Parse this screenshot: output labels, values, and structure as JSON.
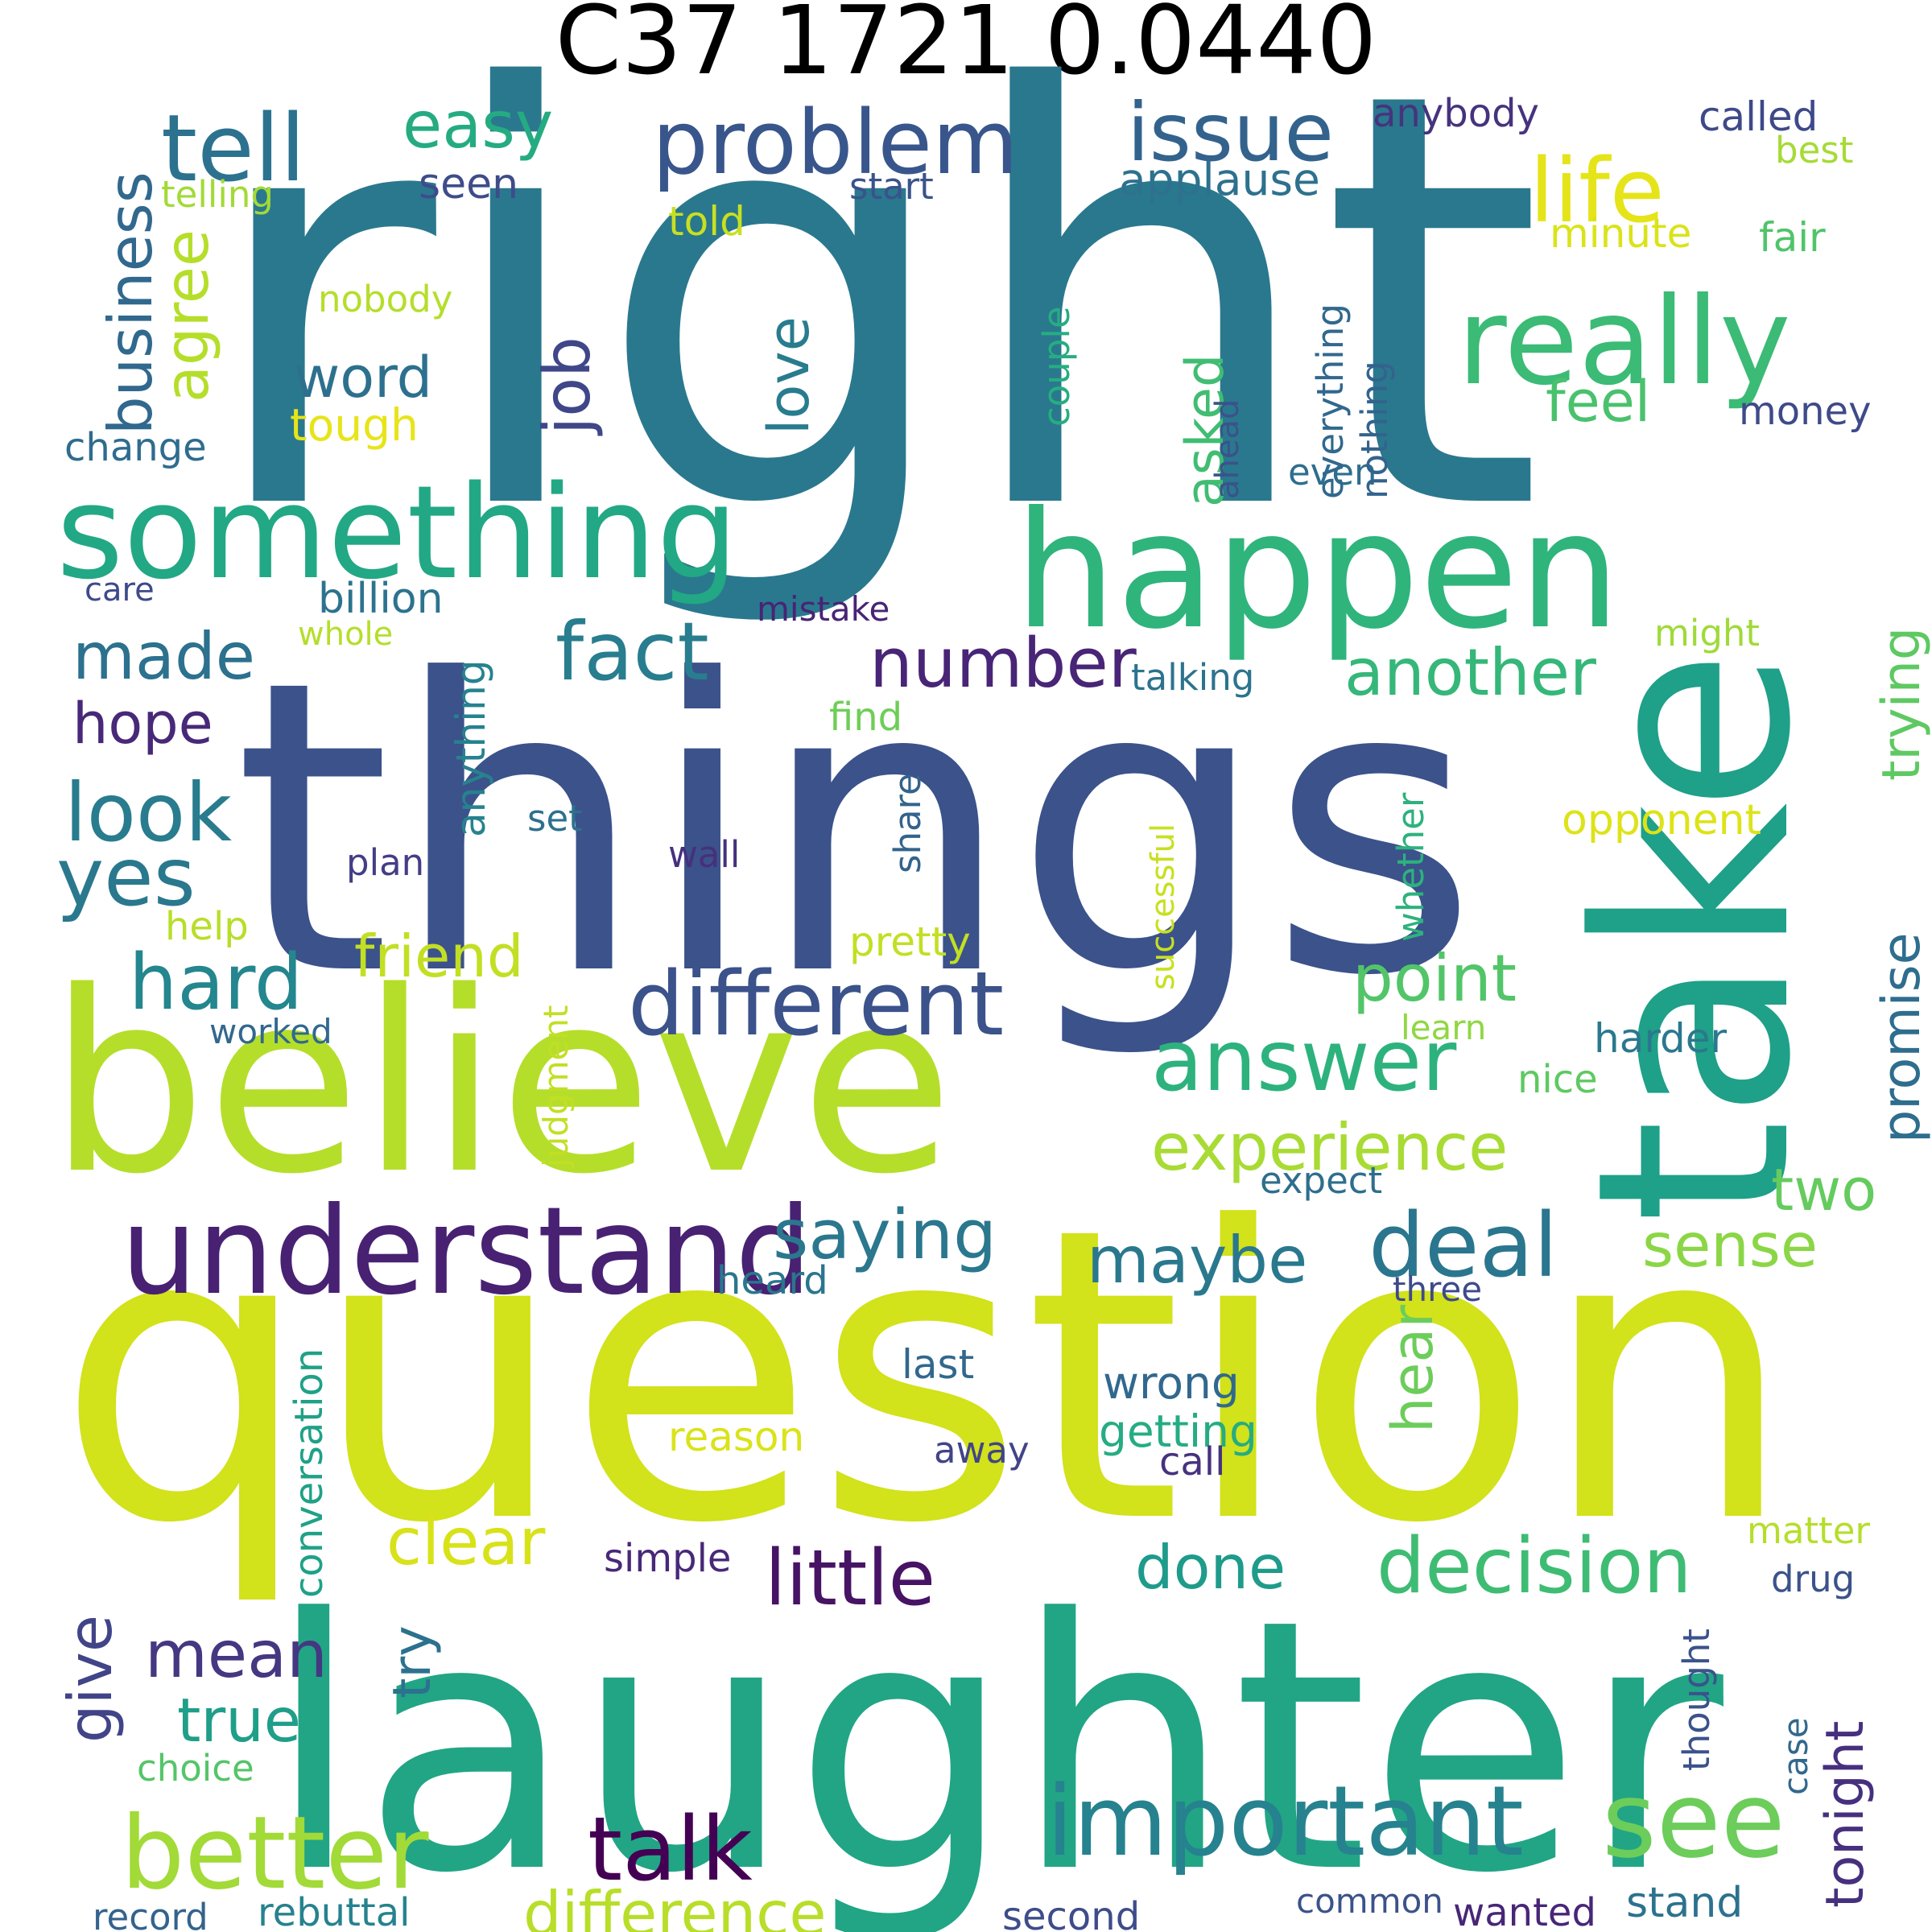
{
  "title": "C37 1721 0.0440",
  "words": [
    {
      "t": "right",
      "c": "#2a788e"
    },
    {
      "t": "things",
      "c": "#3b528b"
    },
    {
      "t": "question",
      "c": "#d2e21b"
    },
    {
      "t": "laughter",
      "c": "#21a585"
    },
    {
      "t": "believe",
      "c": "#b5de2b"
    },
    {
      "t": "take",
      "c": "#1fa088"
    },
    {
      "t": "happen",
      "c": "#2fb47c"
    },
    {
      "t": "something",
      "c": "#22a884"
    },
    {
      "t": "really",
      "c": "#3bbb75"
    },
    {
      "t": "problem",
      "c": "#39568c"
    },
    {
      "t": "tell",
      "c": "#2c728e"
    },
    {
      "t": "issue",
      "c": "#33638d"
    },
    {
      "t": "life",
      "c": "#e5e419"
    },
    {
      "t": "easy",
      "c": "#25ab82"
    },
    {
      "t": "understand",
      "c": "#482173"
    },
    {
      "t": "different",
      "c": "#3b528b"
    },
    {
      "t": "important",
      "c": "#26828e"
    },
    {
      "t": "better",
      "c": "#a2da37"
    },
    {
      "t": "see",
      "c": "#6ccd5a"
    },
    {
      "t": "answer",
      "c": "#2db27d"
    },
    {
      "t": "experience",
      "c": "#a8db34"
    },
    {
      "t": "deal",
      "c": "#2a768e"
    },
    {
      "t": "saying",
      "c": "#2a778e"
    },
    {
      "t": "decision",
      "c": "#3fbc73"
    },
    {
      "t": "little",
      "c": "#471365"
    },
    {
      "t": "talk",
      "c": "#440154"
    },
    {
      "t": "difference",
      "c": "#b8de29"
    },
    {
      "t": "fact",
      "c": "#287d8e"
    },
    {
      "t": "number",
      "c": "#482576"
    },
    {
      "t": "another",
      "c": "#35b779"
    },
    {
      "t": "made",
      "c": "#2c718e"
    },
    {
      "t": "look",
      "c": "#287c8e"
    },
    {
      "t": "yes",
      "c": "#2a788e"
    },
    {
      "t": "hope",
      "c": "#482878"
    },
    {
      "t": "hard",
      "c": "#24868e"
    },
    {
      "t": "word",
      "c": "#2d708e"
    },
    {
      "t": "feel",
      "c": "#4ac16d"
    },
    {
      "t": "point",
      "c": "#52c569"
    },
    {
      "t": "friend",
      "c": "#c2df23"
    },
    {
      "t": "maybe",
      "c": "#2a788e"
    },
    {
      "t": "sense",
      "c": "#8bd646"
    },
    {
      "t": "two",
      "c": "#65cb5e"
    },
    {
      "t": "done",
      "c": "#1e9b8a"
    },
    {
      "t": "clear",
      "c": "#d8e219"
    },
    {
      "t": "mean",
      "c": "#453781"
    },
    {
      "t": "true",
      "c": "#1f9e89"
    },
    {
      "t": "billion",
      "c": "#2c738e"
    },
    {
      "t": "applause",
      "c": "#2d718e"
    },
    {
      "t": "seen",
      "c": "#3e4c8a"
    },
    {
      "t": "told",
      "c": "#c8e020"
    },
    {
      "t": "start",
      "c": "#3a538b"
    },
    {
      "t": "called",
      "c": "#3e4989"
    },
    {
      "t": "anybody",
      "c": "#46337e"
    },
    {
      "t": "best",
      "c": "#a5db36"
    },
    {
      "t": "minute",
      "c": "#dae319"
    },
    {
      "t": "fair",
      "c": "#50c46a"
    },
    {
      "t": "money",
      "c": "#3e4a89"
    },
    {
      "t": "even",
      "c": "#2e6e8e"
    },
    {
      "t": "tough",
      "c": "#e7e419"
    },
    {
      "t": "change",
      "c": "#2f6c8e"
    },
    {
      "t": "nobody",
      "c": "#b5de2b"
    },
    {
      "t": "telling",
      "c": "#a2da37"
    },
    {
      "t": "care",
      "c": "#3e4a89"
    },
    {
      "t": "whole",
      "c": "#b5de2b"
    },
    {
      "t": "mistake",
      "c": "#482475"
    },
    {
      "t": "talking",
      "c": "#2c738e"
    },
    {
      "t": "might",
      "c": "#a0da39"
    },
    {
      "t": "find",
      "c": "#6ece58"
    },
    {
      "t": "set",
      "c": "#2d708e"
    },
    {
      "t": "plan",
      "c": "#433e85"
    },
    {
      "t": "wall",
      "c": "#46307e"
    },
    {
      "t": "opponent",
      "c": "#dde318"
    },
    {
      "t": "help",
      "c": "#b8de29"
    },
    {
      "t": "pretty",
      "c": "#c2df23"
    },
    {
      "t": "worked",
      "c": "#31688e"
    },
    {
      "t": "learn",
      "c": "#90d743"
    },
    {
      "t": "harder",
      "c": "#2a788e"
    },
    {
      "t": "nice",
      "c": "#5ec962"
    },
    {
      "t": "expect",
      "c": "#2e6e8e"
    },
    {
      "t": "heard",
      "c": "#2a768e"
    },
    {
      "t": "three",
      "c": "#3e4a89"
    },
    {
      "t": "last",
      "c": "#31688e"
    },
    {
      "t": "wrong",
      "c": "#31688e"
    },
    {
      "t": "getting",
      "c": "#25ac82"
    },
    {
      "t": "reason",
      "c": "#dae319"
    },
    {
      "t": "away",
      "c": "#414487"
    },
    {
      "t": "call",
      "c": "#46327e"
    },
    {
      "t": "simple",
      "c": "#482878"
    },
    {
      "t": "matter",
      "c": "#b5de2b"
    },
    {
      "t": "drug",
      "c": "#3b528b"
    },
    {
      "t": "choice",
      "c": "#54c568"
    },
    {
      "t": "record",
      "c": "#33638d"
    },
    {
      "t": "rebuttal",
      "c": "#26828e"
    },
    {
      "t": "second",
      "c": "#3e4c8a"
    },
    {
      "t": "common",
      "c": "#3b528b"
    },
    {
      "t": "wanted",
      "c": "#482677"
    },
    {
      "t": "stand",
      "c": "#2c728e"
    },
    {
      "t": "business",
      "c": "#31688e"
    },
    {
      "t": "agree",
      "c": "#b5de2b"
    },
    {
      "t": "job",
      "c": "#3f4788"
    },
    {
      "t": "love",
      "c": "#287c8e"
    },
    {
      "t": "asked",
      "c": "#40bd72"
    },
    {
      "t": "trying",
      "c": "#5ec962"
    },
    {
      "t": "promise",
      "c": "#2e6d8e"
    },
    {
      "t": "anything",
      "c": "#26828e"
    },
    {
      "t": "couple",
      "c": "#26ad81"
    },
    {
      "t": "everything",
      "c": "#31688e"
    },
    {
      "t": "nothing",
      "c": "#33638d"
    },
    {
      "t": "ahead",
      "c": "#3b528b"
    },
    {
      "t": "share",
      "c": "#33638d"
    },
    {
      "t": "successful",
      "c": "#c8e020"
    },
    {
      "t": "whether",
      "c": "#2db27d"
    },
    {
      "t": "hear",
      "c": "#6ccd5a"
    },
    {
      "t": "judgment",
      "c": "#c2df23"
    },
    {
      "t": "conversation",
      "c": "#1fa187"
    },
    {
      "t": "try",
      "c": "#2c718e"
    },
    {
      "t": "give",
      "c": "#414487"
    },
    {
      "t": "tonight",
      "c": "#46307e"
    },
    {
      "t": "thought",
      "c": "#3b528b"
    },
    {
      "t": "case",
      "c": "#31688e"
    }
  ]
}
